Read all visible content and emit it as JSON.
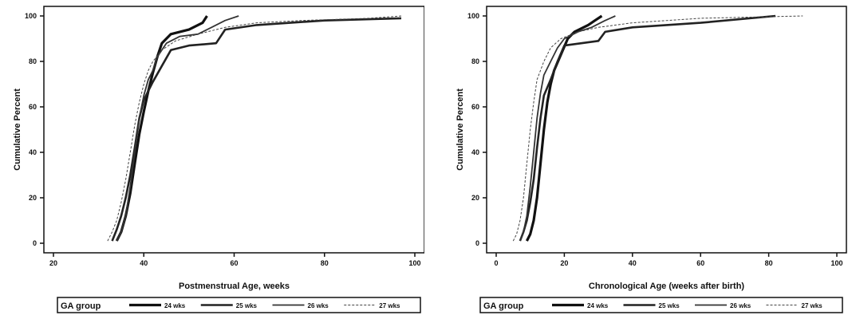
{
  "chart_data": [
    {
      "type": "line",
      "xlabel": "Postmenstrual Age, weeks",
      "ylabel": "Cumulative Percent",
      "xlim": [
        20,
        100
      ],
      "ylim": [
        0,
        100
      ],
      "xticks": [
        "20",
        "40",
        "60",
        "80",
        "100"
      ],
      "yticks": [
        "0",
        "20",
        "40",
        "60",
        "80",
        "100"
      ],
      "legend": {
        "title": "GA group",
        "position": "bottom"
      },
      "series": [
        {
          "name": "24 wks",
          "points": [
            [
              34,
              1
            ],
            [
              35,
              5
            ],
            [
              36,
              12
            ],
            [
              37,
              22
            ],
            [
              38,
              35
            ],
            [
              39,
              48
            ],
            [
              40,
              58
            ],
            [
              41,
              67
            ],
            [
              42,
              75
            ],
            [
              43,
              82
            ],
            [
              44,
              88
            ],
            [
              46,
              92
            ],
            [
              50,
              94
            ],
            [
              53,
              97
            ],
            [
              54,
              100
            ]
          ]
        },
        {
          "name": "25 wks",
          "points": [
            [
              33,
              1
            ],
            [
              34,
              6
            ],
            [
              35,
              12
            ],
            [
              36,
              20
            ],
            [
              37,
              30
            ],
            [
              38,
              42
            ],
            [
              39,
              55
            ],
            [
              40,
              63
            ],
            [
              41,
              67
            ],
            [
              42,
              71
            ],
            [
              44,
              78
            ],
            [
              46,
              85
            ],
            [
              50,
              87
            ],
            [
              56,
              88
            ],
            [
              58,
              94
            ],
            [
              65,
              96
            ],
            [
              80,
              98
            ],
            [
              97,
              99
            ]
          ]
        },
        {
          "name": "26 wks",
          "points": [
            [
              34,
              1
            ],
            [
              35,
              5
            ],
            [
              36,
              12
            ],
            [
              37,
              25
            ],
            [
              38,
              40
            ],
            [
              39,
              55
            ],
            [
              40,
              65
            ],
            [
              41,
              72
            ],
            [
              42,
              76
            ],
            [
              43,
              82
            ],
            [
              45,
              88
            ],
            [
              48,
              91
            ],
            [
              52,
              92
            ],
            [
              55,
              95
            ],
            [
              58,
              98
            ],
            [
              61,
              100
            ]
          ]
        },
        {
          "name": "27 wks",
          "points": [
            [
              32,
              1
            ],
            [
              33,
              5
            ],
            [
              34,
              10
            ],
            [
              35,
              18
            ],
            [
              36,
              28
            ],
            [
              37,
              40
            ],
            [
              38,
              52
            ],
            [
              39,
              62
            ],
            [
              40,
              70
            ],
            [
              41,
              76
            ],
            [
              42,
              80
            ],
            [
              44,
              85
            ],
            [
              47,
              89
            ],
            [
              52,
              92
            ],
            [
              58,
              95
            ],
            [
              65,
              97
            ],
            [
              75,
              98
            ],
            [
              90,
              99
            ],
            [
              97,
              100
            ]
          ]
        }
      ]
    },
    {
      "type": "line",
      "xlabel": "Chronological Age (weeks after birth)",
      "ylabel": "Cumulative Percent",
      "xlim": [
        0,
        100
      ],
      "ylim": [
        0,
        100
      ],
      "xticks": [
        "0",
        "20",
        "40",
        "60",
        "80",
        "100"
      ],
      "yticks": [
        "0",
        "20",
        "40",
        "60",
        "80",
        "100"
      ],
      "legend": {
        "title": "GA group",
        "position": "bottom"
      },
      "series": [
        {
          "name": "24 wks",
          "points": [
            [
              9,
              1
            ],
            [
              10,
              4
            ],
            [
              11,
              10
            ],
            [
              12,
              20
            ],
            [
              13,
              35
            ],
            [
              14,
              50
            ],
            [
              15,
              62
            ],
            [
              16,
              70
            ],
            [
              17,
              76
            ],
            [
              19,
              83
            ],
            [
              21,
              90
            ],
            [
              23,
              93
            ],
            [
              27,
              96
            ],
            [
              29,
              98
            ],
            [
              31,
              100
            ]
          ]
        },
        {
          "name": "25 wks",
          "points": [
            [
              7,
              1
            ],
            [
              8,
              5
            ],
            [
              9,
              10
            ],
            [
              10,
              18
            ],
            [
              11,
              28
            ],
            [
              12,
              42
            ],
            [
              13,
              55
            ],
            [
              14,
              65
            ],
            [
              16,
              72
            ],
            [
              18,
              80
            ],
            [
              20,
              87
            ],
            [
              25,
              88
            ],
            [
              30,
              89
            ],
            [
              32,
              93
            ],
            [
              40,
              95
            ],
            [
              60,
              97
            ],
            [
              82,
              100
            ]
          ]
        },
        {
          "name": "26 wks",
          "points": [
            [
              7,
              1
            ],
            [
              8,
              5
            ],
            [
              9,
              12
            ],
            [
              10,
              25
            ],
            [
              11,
              40
            ],
            [
              12,
              55
            ],
            [
              13,
              66
            ],
            [
              14,
              74
            ],
            [
              16,
              80
            ],
            [
              18,
              86
            ],
            [
              20,
              90
            ],
            [
              24,
              93
            ],
            [
              28,
              95
            ],
            [
              32,
              98
            ],
            [
              35,
              100
            ]
          ]
        },
        {
          "name": "27 wks",
          "points": [
            [
              5,
              1
            ],
            [
              6,
              4
            ],
            [
              7,
              10
            ],
            [
              8,
              20
            ],
            [
              9,
              35
            ],
            [
              10,
              50
            ],
            [
              11,
              62
            ],
            [
              12,
              72
            ],
            [
              14,
              80
            ],
            [
              16,
              86
            ],
            [
              19,
              90
            ],
            [
              24,
              93
            ],
            [
              30,
              95
            ],
            [
              40,
              97
            ],
            [
              60,
              99
            ],
            [
              90,
              100
            ]
          ]
        }
      ]
    }
  ]
}
